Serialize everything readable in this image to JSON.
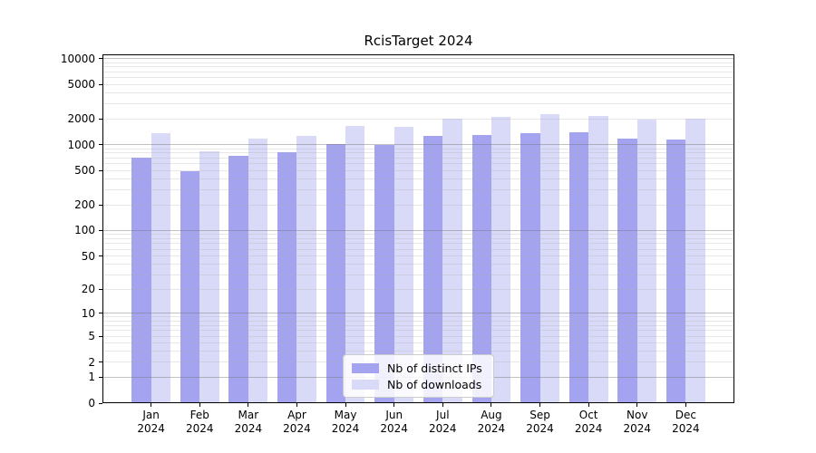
{
  "chart_data": {
    "type": "bar",
    "title": "RcisTarget 2024",
    "categories": [
      "Jan 2024",
      "Feb 2024",
      "Mar 2024",
      "Apr 2024",
      "May 2024",
      "Jun 2024",
      "Jul 2024",
      "Aug 2024",
      "Sep 2024",
      "Oct 2024",
      "Nov 2024",
      "Dec 2024"
    ],
    "series": [
      {
        "name": "Nb of distinct IPs",
        "color": "#a3a3f0",
        "values": [
          700,
          490,
          750,
          825,
          1010,
          985,
          1260,
          1300,
          1350,
          1380,
          1170,
          1160
        ]
      },
      {
        "name": "Nb of downloads",
        "color": "#d9d9f8",
        "values": [
          1350,
          845,
          1190,
          1270,
          1650,
          1630,
          2030,
          2120,
          2260,
          2170,
          1940,
          2020
        ]
      }
    ],
    "xlabel": "",
    "ylabel": "",
    "y_scale": "log1p",
    "y_ticks": [
      0,
      1,
      2,
      5,
      10,
      20,
      50,
      100,
      200,
      500,
      1000,
      2000,
      5000,
      10000
    ],
    "ylim": [
      0,
      11200
    ],
    "grid": true,
    "grid_major_at": [
      1,
      10,
      100,
      1000,
      10000
    ],
    "legend_position": "lower center"
  }
}
